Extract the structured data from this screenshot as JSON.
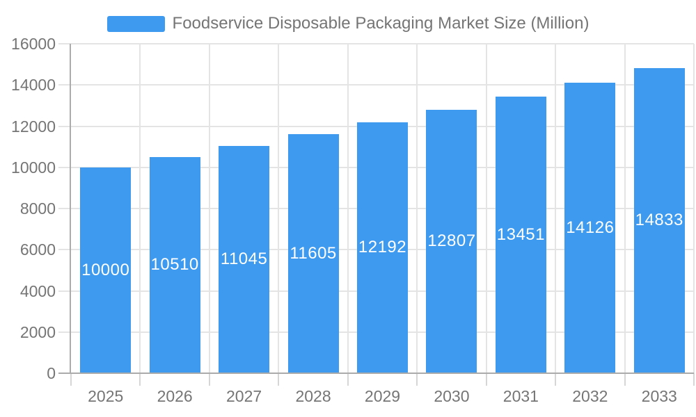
{
  "chart_data": {
    "type": "bar",
    "title": "Foodservice Disposable Packaging Market Size (Million)",
    "categories": [
      "2025",
      "2026",
      "2027",
      "2028",
      "2029",
      "2030",
      "2031",
      "2032",
      "2033"
    ],
    "values": [
      10000,
      10510,
      11045,
      11605,
      12192,
      12807,
      13451,
      14126,
      14833
    ],
    "xlabel": "",
    "ylabel": "",
    "ylim": [
      0,
      16000
    ],
    "ytick_step": 2000,
    "grid": true,
    "legend_position": "top",
    "bar_labels_inside": true
  },
  "colors": {
    "bar": "#3D9AEE",
    "grid": "#E4E4E4",
    "axis": "#ABABAB",
    "tick": "#D6D6D6",
    "text": "#757575",
    "bar_label": "#FFFFFF",
    "background": "#FFFFFF"
  }
}
